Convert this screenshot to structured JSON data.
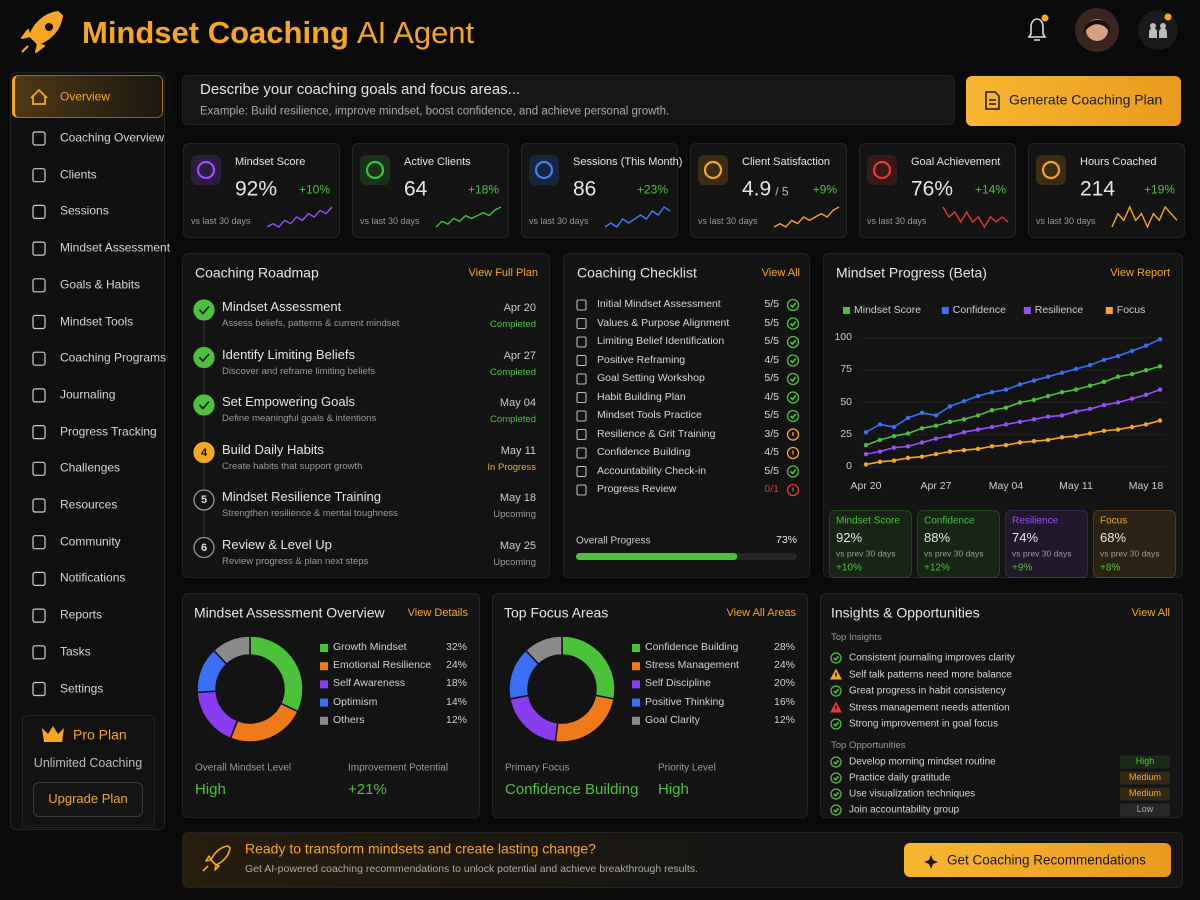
{
  "header": {
    "title": "Mindset Coaching",
    "title_accent": "AI Agent"
  },
  "nav": {
    "items": [
      {
        "label": "Overview",
        "active": true
      },
      {
        "label": "Coaching Overview"
      },
      {
        "label": "Clients"
      },
      {
        "label": "Sessions"
      },
      {
        "label": "Mindset Assessment"
      },
      {
        "label": "Goals & Habits"
      },
      {
        "label": "Mindset Tools"
      },
      {
        "label": "Coaching Programs"
      },
      {
        "label": "Journaling"
      },
      {
        "label": "Progress Tracking"
      },
      {
        "label": "Challenges"
      },
      {
        "label": "Resources"
      },
      {
        "label": "Community"
      },
      {
        "label": "Notifications"
      },
      {
        "label": "Reports"
      },
      {
        "label": "Tasks"
      },
      {
        "label": "Settings"
      }
    ]
  },
  "plan": {
    "name": "Pro Plan",
    "description": "Unlimited Coaching",
    "button": "Upgrade Plan"
  },
  "prompt": {
    "title": "Describe your coaching goals and focus areas...",
    "example": "Example: Build resilience, improve mindset, boost confidence, and achieve personal growth.",
    "button": "Generate Coaching Plan"
  },
  "kpis": [
    {
      "label": "Mindset Score",
      "value": "92%",
      "change": "+10%",
      "note": "vs last 30 days",
      "color": "#9b4dff",
      "trend": [
        3,
        4,
        3,
        5,
        4,
        6,
        5,
        7,
        6,
        8,
        7,
        9
      ]
    },
    {
      "label": "Active Clients",
      "value": "64",
      "change": "+18%",
      "note": "vs last 30 days",
      "color": "#3fbf3f",
      "trend": [
        2,
        4,
        3,
        5,
        4,
        6,
        5,
        6,
        7,
        6,
        8,
        9
      ]
    },
    {
      "label": "Sessions (This Month)",
      "value": "86",
      "change": "+23%",
      "note": "vs last 30 days",
      "color": "#3b82f6",
      "trend": [
        3,
        4,
        3,
        5,
        4,
        5,
        6,
        5,
        7,
        6,
        8,
        7
      ]
    },
    {
      "label": "Client Satisfaction",
      "value": "4.9",
      "suffix": "/ 5",
      "change": "+9%",
      "note": "vs last 30 days",
      "color": "#f5a623",
      "trend": [
        2,
        3,
        2,
        4,
        3,
        5,
        4,
        5,
        6,
        5,
        7,
        8
      ]
    },
    {
      "label": "Goal Achievement",
      "value": "76%",
      "change": "+14%",
      "note": "vs last 30 days",
      "color": "#e53935",
      "trend": [
        8,
        6,
        7,
        5,
        7,
        5,
        6,
        4,
        6,
        5,
        6,
        5
      ]
    },
    {
      "label": "Hours Coached",
      "value": "214",
      "change": "+19%",
      "note": "vs last 30 days",
      "color": "#f5a623",
      "trend": [
        5,
        7,
        6,
        8,
        6,
        7,
        5,
        7,
        6,
        8,
        7,
        6
      ]
    }
  ],
  "roadmap": {
    "title": "Coaching Roadmap",
    "link": "View Full Plan",
    "steps": [
      {
        "title": "Mindset Assessment",
        "description": "Assess beliefs, patterns & current mindset",
        "date": "Apr 20",
        "status": "Completed",
        "state": "done"
      },
      {
        "title": "Identify Limiting Beliefs",
        "description": "Discover and reframe limiting beliefs",
        "date": "Apr 27",
        "status": "Completed",
        "state": "done"
      },
      {
        "title": "Set Empowering Goals",
        "description": "Define meaningful goals & intentions",
        "date": "May 04",
        "status": "Completed",
        "state": "done"
      },
      {
        "marker": "4",
        "title": "Build Daily Habits",
        "description": "Create habits that support growth",
        "date": "May 11",
        "status": "In Progress",
        "state": "active"
      },
      {
        "marker": "5",
        "title": "Mindset Resilience Training",
        "description": "Strengthen resilience & mental toughness",
        "date": "May 18",
        "status": "Upcoming",
        "state": "upcoming"
      },
      {
        "marker": "6",
        "title": "Review & Level Up",
        "description": "Review progress & plan next steps",
        "date": "May 25",
        "status": "Upcoming",
        "state": "upcoming"
      }
    ]
  },
  "checklist": {
    "title": "Coaching Checklist",
    "link": "View All",
    "items": [
      {
        "label": "Initial Mindset Assessment",
        "score": "5/5",
        "state": "ok"
      },
      {
        "label": "Values & Purpose Alignment",
        "score": "5/5",
        "state": "ok"
      },
      {
        "label": "Limiting Belief Identification",
        "score": "5/5",
        "state": "ok"
      },
      {
        "label": "Positive Reframing",
        "score": "4/5",
        "state": "ok"
      },
      {
        "label": "Goal Setting Workshop",
        "score": "5/5",
        "state": "ok"
      },
      {
        "label": "Habit Building Plan",
        "score": "4/5",
        "state": "ok"
      },
      {
        "label": "Mindset Tools Practice",
        "score": "5/5",
        "state": "ok"
      },
      {
        "label": "Resilience & Grit Training",
        "score": "3/5",
        "state": "warn"
      },
      {
        "label": "Confidence Building",
        "score": "4/5",
        "state": "warn"
      },
      {
        "label": "Accountability Check-in",
        "score": "5/5",
        "state": "ok"
      },
      {
        "label": "Progress Review",
        "score": "0/1",
        "state": "error"
      }
    ],
    "progress": {
      "label": "Overall Progress",
      "value": 73,
      "value_label": "73%"
    }
  },
  "progress_panel": {
    "link": "View Report",
    "summary": [
      {
        "name": "Mindset Score",
        "value": "92%",
        "note": "vs prev 30 days",
        "change": "+10%",
        "color": "#4cc13a"
      },
      {
        "name": "Confidence",
        "value": "88%",
        "note": "vs prev 30 days",
        "change": "+12%",
        "color": "#3fbf3f"
      },
      {
        "name": "Resilience",
        "value": "74%",
        "note": "vs prev 30 days",
        "change": "+9%",
        "color": "#9b4dff"
      },
      {
        "name": "Focus",
        "value": "68%",
        "note": "vs prev 30 days",
        "change": "+8%",
        "color": "#f5a623"
      }
    ]
  },
  "assessment_panel": {
    "link": "View Details",
    "stats": [
      {
        "label": "Overall Mindset Level",
        "value": "High"
      },
      {
        "label": "Improvement Potential",
        "value": "+21%"
      }
    ]
  },
  "focus_panel": {
    "link": "View All Areas",
    "stats": [
      {
        "label": "Primary Focus",
        "value": "Confidence Building"
      },
      {
        "label": "Priority Level",
        "value": "High"
      }
    ]
  },
  "insights": {
    "title": "Insights & Opportunities",
    "link": "View All",
    "top_insights": {
      "heading": "Top Insights",
      "items": [
        {
          "text": "Consistent journaling improves clarity",
          "kind": "ok"
        },
        {
          "text": "Self talk patterns need more balance",
          "kind": "warn"
        },
        {
          "text": "Great progress in habit consistency",
          "kind": "ok"
        },
        {
          "text": "Stress management needs attention",
          "kind": "alert"
        },
        {
          "text": "Strong improvement in goal focus",
          "kind": "ok"
        }
      ]
    },
    "top_opportunities": {
      "heading": "Top Opportunities",
      "items": [
        {
          "text": "Develop morning mindset routine",
          "priority": "High",
          "badge_color": "#4cc13a"
        },
        {
          "text": "Practice daily gratitude",
          "priority": "Medium",
          "badge_color": "#f5a623"
        },
        {
          "text": "Use visualization techniques",
          "priority": "Medium",
          "badge_color": "#f5a623"
        },
        {
          "text": "Join accountability group",
          "priority": "Low",
          "badge_color": "#aaaaaa"
        }
      ]
    }
  },
  "cta": {
    "title": "Ready to transform mindsets and create lasting change?",
    "subtitle": "Get AI-powered coaching recommendations to unlock potential and achieve breakthrough results.",
    "button": "Get Coaching Recommendations"
  },
  "chart_data": [
    {
      "type": "line",
      "title": "Mindset Progress (Beta)",
      "categories": [
        "Apr 20",
        null,
        null,
        null,
        null,
        "Apr 27",
        null,
        null,
        null,
        null,
        "May 04",
        null,
        null,
        null,
        null,
        "May 11",
        null,
        null,
        null,
        null,
        "May 18",
        null
      ],
      "series": [
        {
          "name": "Mindset Score",
          "color": "#4cc13a",
          "values": [
            17,
            21,
            24,
            26,
            30,
            32,
            35,
            37,
            40,
            44,
            46,
            50,
            52,
            55,
            58,
            60,
            63,
            66,
            70,
            72,
            75,
            78
          ]
        },
        {
          "name": "Confidence",
          "color": "#3b6ff6",
          "values": [
            27,
            33,
            31,
            38,
            42,
            40,
            47,
            51,
            55,
            58,
            60,
            64,
            67,
            70,
            73,
            76,
            79,
            83,
            86,
            90,
            94,
            99
          ]
        },
        {
          "name": "Resilience",
          "color": "#9b4dff",
          "values": [
            10,
            12,
            15,
            16,
            19,
            22,
            24,
            27,
            29,
            31,
            33,
            35,
            37,
            39,
            40,
            43,
            45,
            48,
            50,
            53,
            56,
            60
          ]
        },
        {
          "name": "Focus",
          "color": "#f5a623",
          "values": [
            2,
            4,
            5,
            7,
            8,
            10,
            12,
            13,
            14,
            16,
            17,
            19,
            20,
            21,
            23,
            24,
            26,
            28,
            29,
            31,
            33,
            36
          ]
        }
      ],
      "ylim": [
        0,
        100
      ],
      "yticks": [
        0,
        25,
        50,
        75,
        100
      ],
      "grid": true
    },
    {
      "type": "pie",
      "title": "Mindset Assessment Overview",
      "categories": [
        "Growth Mindset",
        "Emotional Resilience",
        "Self Awareness",
        "Optimism",
        "Others"
      ],
      "values": [
        32,
        24,
        18,
        14,
        12
      ],
      "value_labels": [
        "32%",
        "24%",
        "18%",
        "14%",
        "12%"
      ],
      "colors": [
        "#4cc13a",
        "#f07a1a",
        "#8a3cf0",
        "#3b6ff6",
        "#8a8a8a"
      ]
    },
    {
      "type": "pie",
      "title": "Top Focus Areas",
      "categories": [
        "Confidence Building",
        "Stress Management",
        "Self Discipline",
        "Positive Thinking",
        "Goal Clarity"
      ],
      "values": [
        28,
        24,
        20,
        16,
        12
      ],
      "value_labels": [
        "28%",
        "24%",
        "20%",
        "16%",
        "12%"
      ],
      "colors": [
        "#4cc13a",
        "#f07a1a",
        "#8a3cf0",
        "#3b6ff6",
        "#8a8a8a"
      ]
    }
  ]
}
